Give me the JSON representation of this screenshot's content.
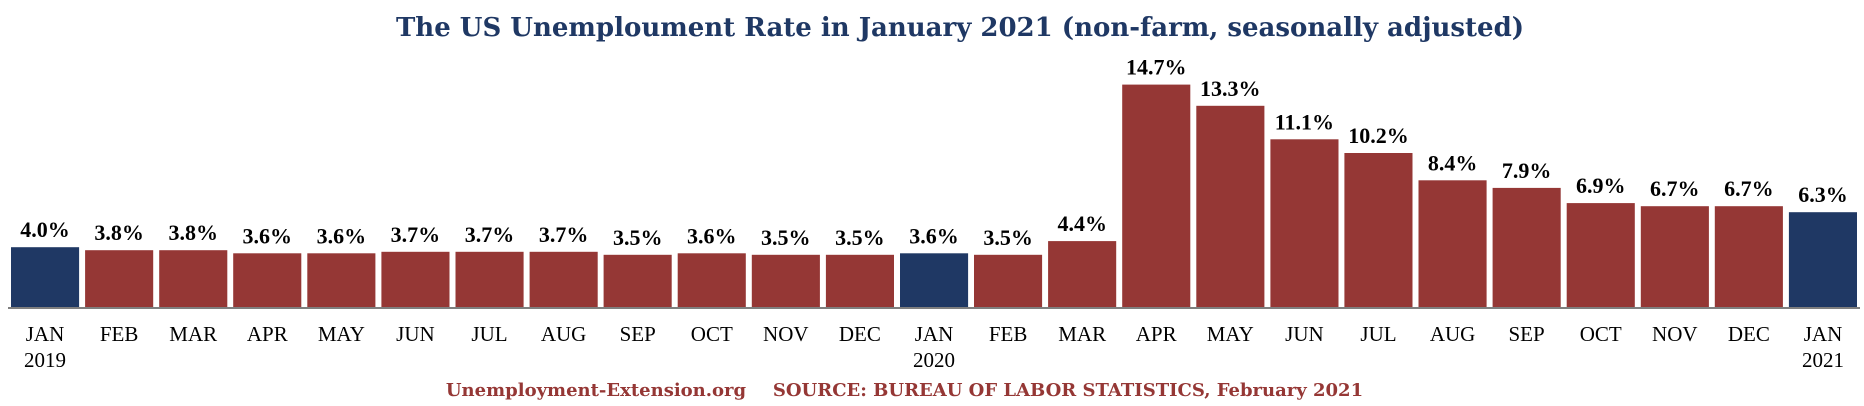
{
  "chart_data": {
    "type": "bar",
    "title": "The US Unemploument Rate in January 2021 (non-farm, seasonally adjusted)",
    "xlabel": "",
    "ylabel": "",
    "ylim": [
      0,
      16
    ],
    "grid": false,
    "legend": "none",
    "categories": [
      [
        "JAN",
        "2019"
      ],
      [
        "FEB"
      ],
      [
        "MAR"
      ],
      [
        "APR"
      ],
      [
        "MAY"
      ],
      [
        "JUN"
      ],
      [
        "JUL"
      ],
      [
        "AUG"
      ],
      [
        "SEP"
      ],
      [
        "OCT"
      ],
      [
        "NOV"
      ],
      [
        "DEC"
      ],
      [
        "JAN",
        "2020"
      ],
      [
        "FEB"
      ],
      [
        "MAR"
      ],
      [
        "APR"
      ],
      [
        "MAY"
      ],
      [
        "JUN"
      ],
      [
        "JUL"
      ],
      [
        "AUG"
      ],
      [
        "SEP"
      ],
      [
        "OCT"
      ],
      [
        "NOV"
      ],
      [
        "DEC"
      ],
      [
        "JAN",
        "2021"
      ]
    ],
    "values": [
      4.0,
      3.8,
      3.8,
      3.6,
      3.6,
      3.7,
      3.7,
      3.7,
      3.5,
      3.6,
      3.5,
      3.5,
      3.6,
      3.5,
      4.4,
      14.7,
      13.3,
      11.1,
      10.2,
      8.4,
      7.9,
      6.9,
      6.7,
      6.7,
      6.3
    ],
    "value_labels": [
      "4.0%",
      "3.8%",
      "3.8%",
      "3.6%",
      "3.6%",
      "3.7%",
      "3.7%",
      "3.7%",
      "3.5%",
      "3.6%",
      "3.5%",
      "3.5%",
      "3.6%",
      "3.5%",
      "4.4%",
      "14.7%",
      "13.3%",
      "11.1%",
      "10.2%",
      "8.4%",
      "7.9%",
      "6.9%",
      "6.7%",
      "6.7%",
      "6.3%"
    ],
    "highlight": [
      true,
      false,
      false,
      false,
      false,
      false,
      false,
      false,
      false,
      false,
      false,
      false,
      true,
      false,
      false,
      false,
      false,
      false,
      false,
      false,
      false,
      false,
      false,
      false,
      true
    ],
    "colors": {
      "bar": "#953735",
      "highlight": "#1f3864",
      "baseline": "#7f7f7f"
    }
  },
  "footer": {
    "site": "Unemployment-Extension.org",
    "source": "SOURCE: BUREAU OF LABOR STATISTICS, February 2021"
  }
}
